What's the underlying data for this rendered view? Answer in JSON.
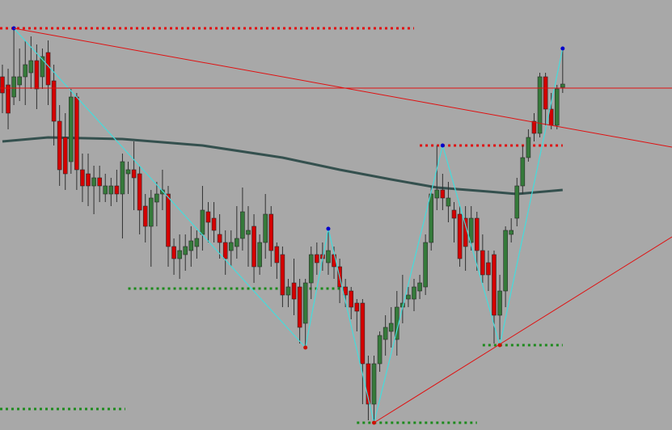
{
  "chart_data": {
    "type": "candlestick",
    "xlim": [
      -0.42,
      117.12
    ],
    "ylim": [
      0,
      532
    ],
    "up_color": "#357a3a",
    "down_color": "#d40000",
    "wick_color": "#303030",
    "open": [
      437,
      427,
      412,
      427,
      437,
      442,
      457,
      437,
      467,
      432,
      382,
      362,
      332,
      412,
      322,
      317,
      302,
      312,
      292,
      292,
      302,
      292,
      317,
      322,
      317,
      277,
      252,
      282,
      292,
      292,
      227,
      212,
      217,
      222,
      227,
      242,
      270,
      262,
      242,
      232,
      222,
      227,
      237,
      242,
      252,
      202,
      232,
      267,
      227,
      217,
      167,
      182,
      177,
      132,
      182,
      217,
      217,
      207,
      217,
      202,
      177,
      172,
      157,
      157,
      82,
      32,
      82,
      112,
      122,
      112,
      152,
      162,
      162,
      172,
      177,
      232,
      287,
      297,
      277,
      272,
      267,
      262,
      232,
      262,
      222,
      207,
      217,
      142,
      172,
      242,
      262,
      302,
      337,
      382,
      367,
      437,
      397,
      377,
      424
    ],
    "high": [
      452,
      447,
      497,
      472,
      482,
      487,
      477,
      472,
      482,
      452,
      402,
      392,
      422,
      417,
      342,
      342,
      327,
      327,
      317,
      312,
      322,
      342,
      332,
      357,
      327,
      292,
      297,
      307,
      322,
      302,
      237,
      242,
      242,
      252,
      247,
      302,
      282,
      282,
      267,
      247,
      247,
      277,
      300,
      277,
      267,
      242,
      292,
      277,
      232,
      227,
      187,
      212,
      187,
      187,
      227,
      232,
      232,
      247,
      227,
      212,
      187,
      177,
      162,
      162,
      92,
      92,
      122,
      142,
      152,
      172,
      192,
      177,
      187,
      192,
      242,
      302,
      352,
      317,
      307,
      282,
      277,
      277,
      277,
      270,
      242,
      222,
      222,
      192,
      252,
      262,
      312,
      352,
      372,
      392,
      442,
      442,
      417,
      427,
      472
    ],
    "low": [
      392,
      372,
      402,
      407,
      402,
      422,
      397,
      422,
      402,
      352,
      302,
      297,
      317,
      297,
      282,
      277,
      267,
      282,
      282,
      277,
      282,
      237,
      292,
      272,
      242,
      232,
      202,
      252,
      272,
      202,
      192,
      187,
      197,
      202,
      212,
      222,
      232,
      232,
      212,
      192,
      202,
      212,
      222,
      202,
      182,
      192,
      212,
      202,
      187,
      152,
      152,
      142,
      107,
      102,
      162,
      192,
      197,
      192,
      187,
      157,
      152,
      137,
      122,
      32,
      12,
      7,
      72,
      92,
      102,
      92,
      132,
      152,
      147,
      162,
      167,
      222,
      272,
      272,
      257,
      232,
      202,
      197,
      222,
      197,
      182,
      172,
      107,
      112,
      152,
      232,
      252,
      292,
      332,
      357,
      362,
      377,
      372,
      372,
      417
    ],
    "close": [
      417,
      392,
      437,
      437,
      452,
      457,
      422,
      462,
      427,
      382,
      322,
      317,
      412,
      322,
      302,
      302,
      312,
      302,
      302,
      302,
      292,
      332,
      322,
      312,
      272,
      252,
      287,
      292,
      297,
      227,
      212,
      222,
      227,
      234,
      237,
      272,
      257,
      247,
      232,
      212,
      232,
      237,
      270,
      247,
      202,
      232,
      267,
      222,
      207,
      167,
      177,
      162,
      127,
      182,
      217,
      207,
      212,
      222,
      202,
      177,
      167,
      152,
      147,
      82,
      32,
      82,
      117,
      127,
      132,
      152,
      157,
      167,
      177,
      182,
      232,
      292,
      297,
      287,
      287,
      262,
      212,
      227,
      262,
      222,
      192,
      192,
      142,
      172,
      247,
      247,
      302,
      337,
      362,
      367,
      437,
      397,
      377,
      422,
      428
    ],
    "moving_average": {
      "color": "#34504e",
      "x": [
        0,
        8,
        21,
        35,
        49,
        59,
        68,
        76,
        85,
        90,
        98
      ],
      "values": [
        357,
        362,
        360,
        352,
        337,
        322,
        310,
        300,
        295,
        292,
        297
      ]
    },
    "zigzag": {
      "color": "#44dcdc",
      "high_color": "#0000cc",
      "low_color": "#cc1100",
      "x": [
        2,
        53,
        57,
        65,
        77,
        87,
        98
      ],
      "values": [
        497,
        102,
        249,
        9,
        352,
        105,
        472
      ]
    },
    "trendlines": [
      {
        "color": "#e01010",
        "x": [
          2,
          117.12
        ],
        "values": [
          497,
          350
        ]
      },
      {
        "color": "#e01010",
        "x": [
          65,
          117.12
        ],
        "values": [
          9,
          239
        ]
      },
      {
        "color": "#e01010",
        "x": [
          -0.42,
          117.12
        ],
        "values": [
          423,
          423
        ]
      }
    ],
    "levels": [
      {
        "color": "#e01010",
        "x": [
          -0.42,
          72
        ],
        "value": 497
      },
      {
        "color": "#e01010",
        "x": [
          73,
          98
        ],
        "value": 352
      },
      {
        "color": "#1d8a1d",
        "x": [
          22,
          59
        ],
        "value": 175
      },
      {
        "color": "#1d8a1d",
        "x": [
          84,
          98
        ],
        "value": 105
      },
      {
        "color": "#1d8a1d",
        "x": [
          62,
          83
        ],
        "value": 9
      },
      {
        "color": "#1d8a1d",
        "x": [
          -0.42,
          21.5
        ],
        "value": 26
      }
    ]
  }
}
